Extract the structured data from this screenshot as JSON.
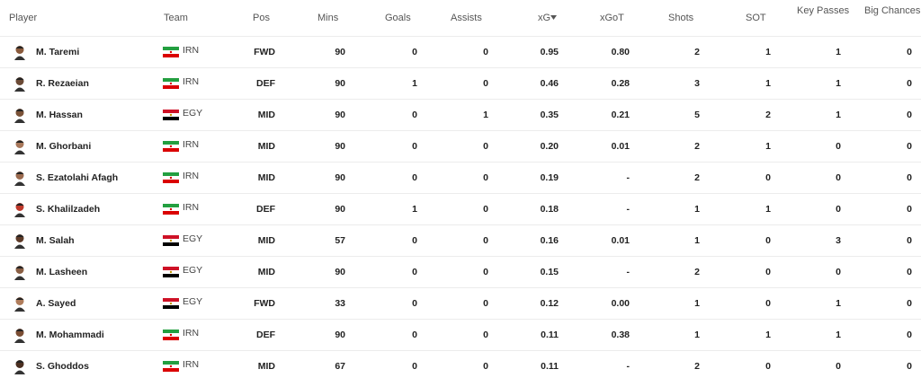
{
  "table": {
    "headers": [
      "Player",
      "Team",
      "Pos",
      "Mins",
      "Goals",
      "Assists",
      "xG",
      "xGoT",
      "Shots",
      "SOT",
      "Key Passes",
      "Big Chances"
    ],
    "rows": [
      [
        "M. Taremi",
        "IRN",
        "FWD",
        "90",
        "0",
        "0",
        "0.95",
        "0.80",
        "2",
        "1",
        "1",
        "0"
      ],
      [
        "R. Rezaeian",
        "IRN",
        "DEF",
        "90",
        "1",
        "0",
        "0.46",
        "0.28",
        "3",
        "1",
        "1",
        "0"
      ],
      [
        "M. Hassan",
        "EGY",
        "MID",
        "90",
        "0",
        "1",
        "0.35",
        "0.21",
        "5",
        "2",
        "1",
        "0"
      ],
      [
        "M. Ghorbani",
        "IRN",
        "MID",
        "90",
        "0",
        "0",
        "0.20",
        "0.01",
        "2",
        "1",
        "0",
        "0"
      ],
      [
        "S. Ezatolahi Afagh",
        "IRN",
        "MID",
        "90",
        "0",
        "0",
        "0.19",
        "-",
        "2",
        "0",
        "0",
        "0"
      ],
      [
        "S. Khalilzadeh",
        "IRN",
        "DEF",
        "90",
        "1",
        "0",
        "0.18",
        "-",
        "1",
        "1",
        "0",
        "0"
      ],
      [
        "M. Salah",
        "EGY",
        "MID",
        "57",
        "0",
        "0",
        "0.16",
        "0.01",
        "1",
        "0",
        "3",
        "0"
      ],
      [
        "M. Lasheen",
        "EGY",
        "MID",
        "90",
        "0",
        "0",
        "0.15",
        "-",
        "2",
        "0",
        "0",
        "0"
      ],
      [
        "A. Sayed",
        "EGY",
        "FWD",
        "33",
        "0",
        "0",
        "0.12",
        "0.00",
        "1",
        "0",
        "1",
        "0"
      ],
      [
        "M. Mohammadi",
        "IRN",
        "DEF",
        "90",
        "0",
        "0",
        "0.11",
        "0.38",
        "1",
        "1",
        "1",
        "0"
      ],
      [
        "S. Ghoddos",
        "IRN",
        "MID",
        "67",
        "0",
        "0",
        "0.11",
        "-",
        "2",
        "0",
        "0",
        "0"
      ]
    ]
  }
}
